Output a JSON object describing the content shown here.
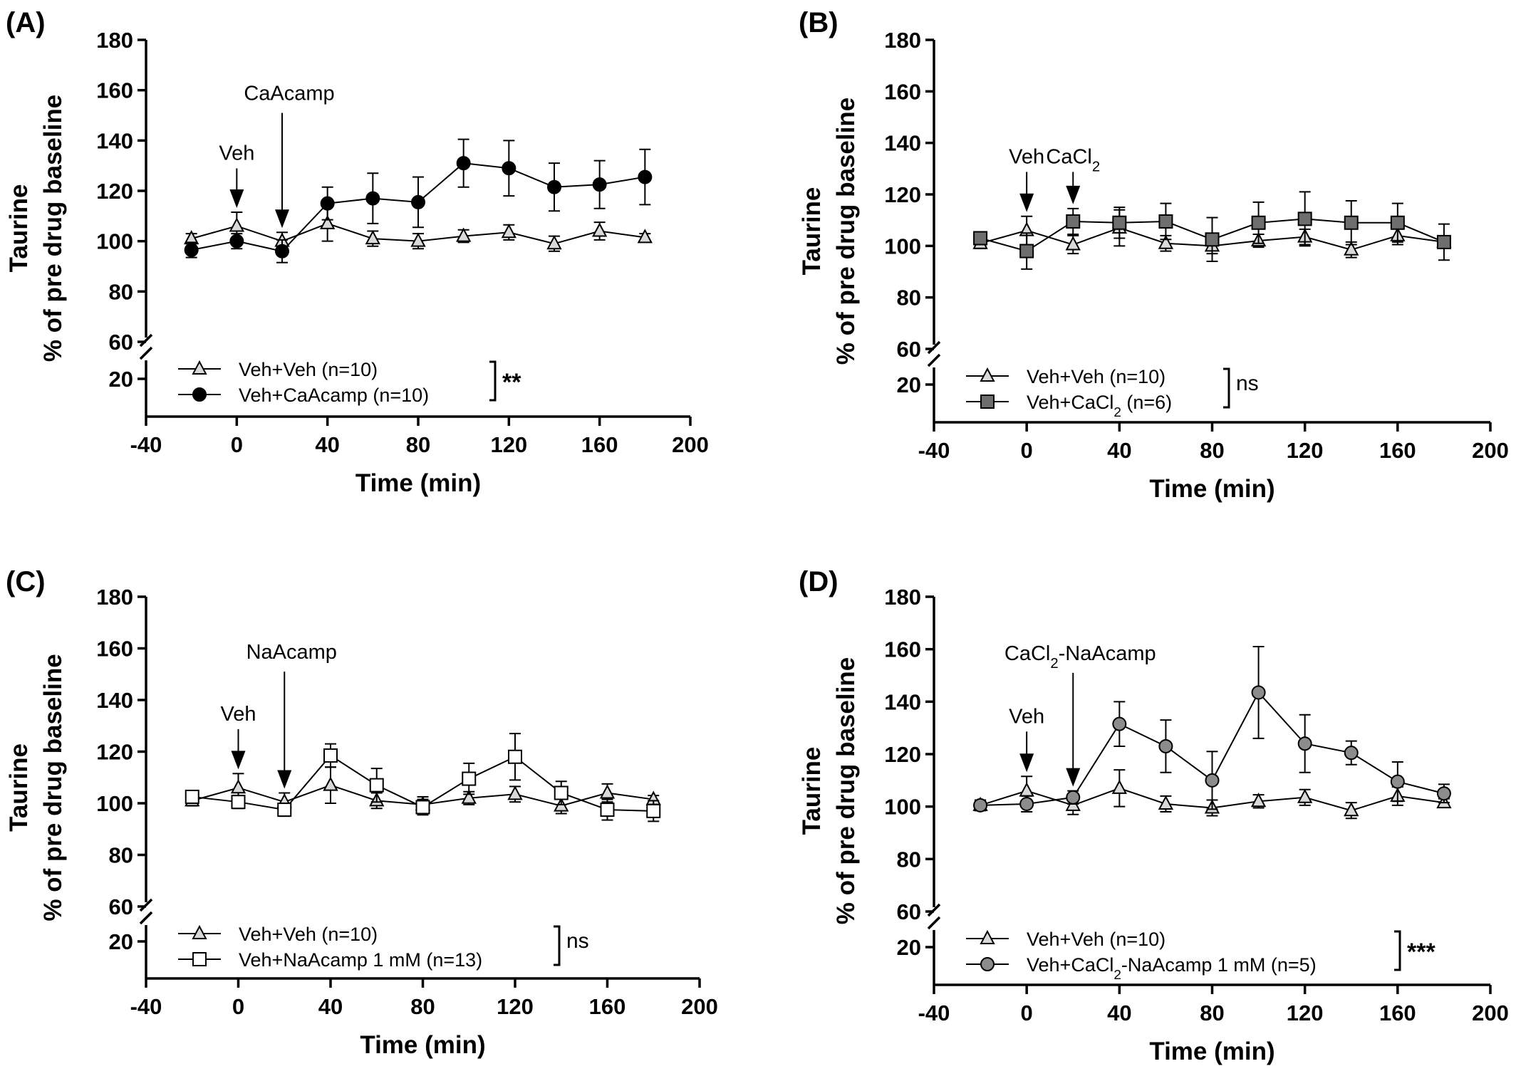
{
  "figure": {
    "chart_data": [
      {
        "panel": "(A)",
        "type": "line",
        "xlabel": "Time (min)",
        "ylabel_lines": [
          "Taurine",
          "% of pre drug baseline"
        ],
        "xlim": [
          -40,
          200
        ],
        "xticks": [
          -40,
          0,
          40,
          80,
          120,
          160,
          200
        ],
        "ylim_broken": [
          [
            0,
            20
          ],
          [
            60,
            180
          ]
        ],
        "yticks": [
          20,
          60,
          80,
          100,
          120,
          140,
          160,
          180
        ],
        "annotations": [
          {
            "label": "Veh",
            "x": 0,
            "arrow": "short"
          },
          {
            "label": "CaAcamp",
            "x": 20,
            "arrow": "long"
          }
        ],
        "significance": "**",
        "series": [
          {
            "name": "Veh+Veh (n=10)",
            "marker": "triangle",
            "fill": "#d9d9d9",
            "x": [
              -20,
              0,
              20,
              40,
              60,
              80,
              100,
              120,
              140,
              160,
              180
            ],
            "y": [
              101,
              106,
              100,
              107,
              101,
              100,
              102,
              103.5,
              99,
              104,
              101.5
            ],
            "err": [
              2,
              5.5,
              3.5,
              7,
              3,
              3,
              2.5,
              3,
              3,
              3.5,
              1.5
            ]
          },
          {
            "name": "Veh+CaAcamp (n=10)",
            "marker": "circle",
            "fill": "#000000",
            "x": [
              -20,
              0,
              20,
              40,
              60,
              80,
              100,
              120,
              140,
              160,
              180
            ],
            "y": [
              96.5,
              100,
              96,
              115,
              117,
              115.5,
              131,
              129,
              121.5,
              122.5,
              125.5
            ],
            "err": [
              3,
              3,
              4.5,
              6.5,
              10,
              10,
              9.5,
              11,
              9.5,
              9.5,
              11
            ]
          }
        ]
      },
      {
        "panel": "(B)",
        "type": "line",
        "xlabel": "Time (min)",
        "ylabel_lines": [
          "Taurine",
          "% of pre drug baseline"
        ],
        "xlim": [
          -40,
          200
        ],
        "xticks": [
          -40,
          0,
          40,
          80,
          120,
          160,
          200
        ],
        "ylim_broken": [
          [
            0,
            20
          ],
          [
            60,
            180
          ]
        ],
        "yticks": [
          20,
          60,
          80,
          100,
          120,
          140,
          160,
          180
        ],
        "annotations": [
          {
            "label": "Veh",
            "x": 0,
            "arrow": "short"
          },
          {
            "label": "CaCl2",
            "x": 20,
            "arrow": "short"
          }
        ],
        "significance": "ns",
        "series": [
          {
            "name": "Veh+Veh (n=10)",
            "marker": "triangle",
            "fill": "#d9d9d9",
            "x": [
              -20,
              0,
              20,
              40,
              60,
              80,
              100,
              120,
              140,
              160,
              180
            ],
            "y": [
              101,
              106,
              100.5,
              107,
              101,
              100,
              102,
              103.5,
              98.5,
              104,
              101.5
            ],
            "err": [
              2,
              5.5,
              3.5,
              7,
              3,
              3,
              2.5,
              3,
              3,
              3.5,
              1.5
            ]
          },
          {
            "name": "Veh+CaCl2 (n=6)",
            "marker": "square",
            "fill": "#6e6e6e",
            "x": [
              -20,
              0,
              20,
              40,
              60,
              80,
              100,
              120,
              140,
              160,
              180
            ],
            "y": [
              103,
              98,
              109.5,
              109,
              109.5,
              102.5,
              109,
              110.5,
              109,
              109,
              101.5
            ],
            "err": [
              1.5,
              7,
              5,
              6,
              7,
              8.5,
              8,
              10.5,
              8.5,
              7.5,
              7
            ]
          }
        ]
      },
      {
        "panel": "(C)",
        "type": "line",
        "xlabel": "Time (min)",
        "ylabel_lines": [
          "Taurine",
          "% of pre drug baseline"
        ],
        "xlim": [
          -40,
          200
        ],
        "xticks": [
          -40,
          0,
          40,
          80,
          120,
          160,
          200
        ],
        "ylim_broken": [
          [
            0,
            20
          ],
          [
            60,
            180
          ]
        ],
        "yticks": [
          20,
          60,
          80,
          100,
          120,
          140,
          160,
          180
        ],
        "annotations": [
          {
            "label": "Veh",
            "x": 0,
            "arrow": "short"
          },
          {
            "label": "NaAcamp",
            "x": 20,
            "arrow": "long"
          }
        ],
        "significance": "ns",
        "series": [
          {
            "name": "Veh+Veh (n=10)",
            "marker": "triangle",
            "fill": "#d9d9d9",
            "x": [
              -20,
              0,
              20,
              40,
              60,
              80,
              100,
              120,
              140,
              160,
              180
            ],
            "y": [
              101,
              106,
              100.5,
              107,
              101,
              99.5,
              102,
              103.5,
              99,
              104,
              101.5
            ],
            "err": [
              2,
              5.5,
              3.5,
              7,
              3,
              3,
              2.5,
              3,
              3,
              3.5,
              1.5
            ]
          },
          {
            "name": "Veh+NaAcamp 1 mM (n=13)",
            "marker": "square",
            "fill": "#ffffff",
            "x": [
              -20,
              0,
              20,
              40,
              60,
              80,
              100,
              120,
              140,
              160,
              180
            ],
            "y": [
              102.5,
              100.5,
              97.5,
              118.5,
              107,
              98.5,
              109.5,
              118,
              104,
              97.5,
              97
            ],
            "err": [
              2,
              2.5,
              2.5,
              4.5,
              6.5,
              3,
              6,
              9,
              4.5,
              4,
              4
            ]
          }
        ]
      },
      {
        "panel": "(D)",
        "type": "line",
        "xlabel": "Time (min)",
        "ylabel_lines": [
          "Taurine",
          "% of pre drug baseline"
        ],
        "xlim": [
          -40,
          200
        ],
        "xticks": [
          -40,
          0,
          40,
          80,
          120,
          160,
          200
        ],
        "ylim_broken": [
          [
            0,
            20
          ],
          [
            60,
            180
          ]
        ],
        "yticks": [
          20,
          60,
          80,
          100,
          120,
          140,
          160,
          180
        ],
        "annotations": [
          {
            "label": "Veh",
            "x": 0,
            "arrow": "short"
          },
          {
            "label": "CaCl2-NaAcamp",
            "x": 20,
            "arrow": "long"
          }
        ],
        "significance": "***",
        "series": [
          {
            "name": "Veh+Veh (n=10)",
            "marker": "triangle",
            "fill": "#d9d9d9",
            "x": [
              -20,
              0,
              20,
              40,
              60,
              80,
              100,
              120,
              140,
              160,
              180
            ],
            "y": [
              100.5,
              106,
              100.5,
              107,
              101,
              99.5,
              102,
              103.5,
              98.5,
              104,
              101.5
            ],
            "err": [
              2,
              5.5,
              3.5,
              7,
              3,
              3,
              2.5,
              3,
              3,
              3.5,
              1.5
            ]
          },
          {
            "name": "Veh+CaCl2-NaAcamp 1 mM (n=5)",
            "marker": "circle",
            "fill": "#8c8c8c",
            "x": [
              -20,
              0,
              20,
              40,
              60,
              80,
              100,
              120,
              140,
              160,
              180
            ],
            "y": [
              100.5,
              101,
              103.5,
              131.5,
              123,
              110,
              143.5,
              124,
              120.5,
              109.5,
              105
            ],
            "err": [
              2,
              3,
              2.5,
              8.5,
              10,
              11,
              17.5,
              11,
              4.5,
              7.5,
              3.5
            ]
          }
        ]
      }
    ]
  }
}
